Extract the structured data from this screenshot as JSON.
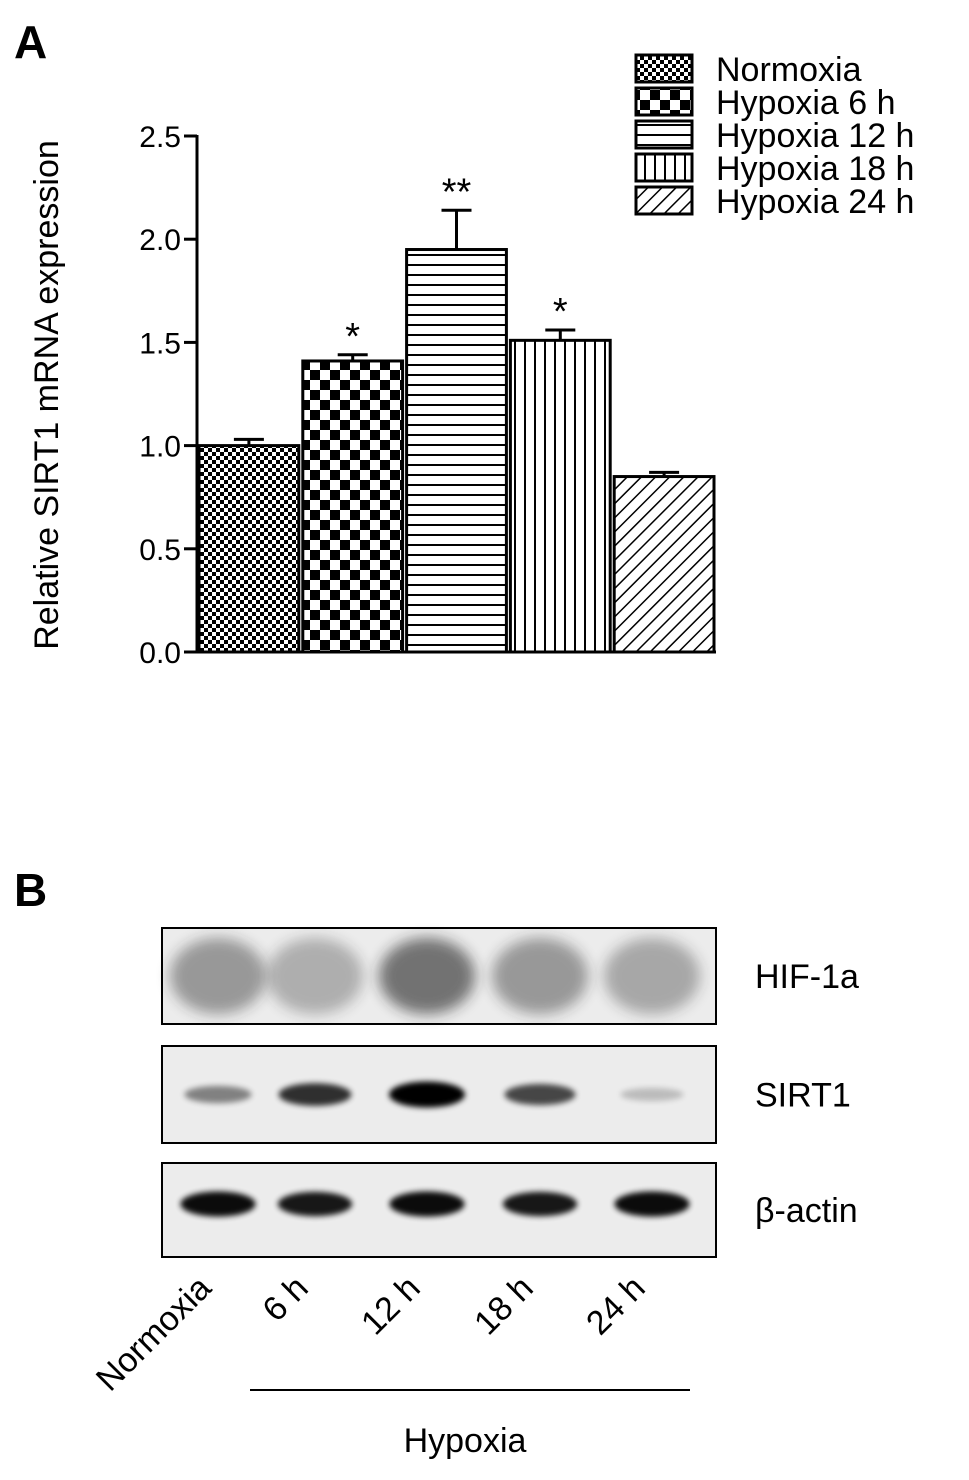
{
  "chart_data": {
    "type": "bar",
    "panel_label": "A",
    "y_label": "Relative SIRT1 mRNA expression",
    "ylim": [
      0,
      2.5
    ],
    "yticks": [
      {
        "value": 0,
        "label": "0.0"
      },
      0.5,
      {
        "value": 1,
        "label": "1.0"
      },
      1.5,
      {
        "value": 2,
        "label": "2.0"
      },
      2.5
    ],
    "series": [
      {
        "name": "Normoxia",
        "color": "#000000",
        "pattern": "fine-checker",
        "values": [
          1.0
        ],
        "errors": [
          0.03
        ]
      },
      {
        "name": "Hypoxia 6 h",
        "color": "#000000",
        "pattern": "checker",
        "values": [
          1.41
        ],
        "errors": [
          0.03
        ],
        "significance": "*"
      },
      {
        "name": "Hypoxia 12 h",
        "color": "#000000",
        "pattern": "horizontal",
        "values": [
          1.95
        ],
        "errors": [
          0.19
        ],
        "significance": "**"
      },
      {
        "name": "Hypoxia 18 h",
        "color": "#000000",
        "pattern": "vertical",
        "values": [
          1.51
        ],
        "errors": [
          0.05
        ],
        "significance": "*"
      },
      {
        "name": "Hypoxia 24 h",
        "color": "#000000",
        "pattern": "diagonal",
        "values": [
          0.85
        ],
        "errors": [
          0.02
        ]
      }
    ]
  },
  "blot": {
    "panel_label": "B",
    "rows": [
      "HIF-1a",
      "SIRT1",
      "β-actin"
    ],
    "lanes": [
      "Normoxia",
      "6 h",
      "12 h",
      "18 h",
      "24 h"
    ],
    "group_label": "Hypoxia"
  }
}
